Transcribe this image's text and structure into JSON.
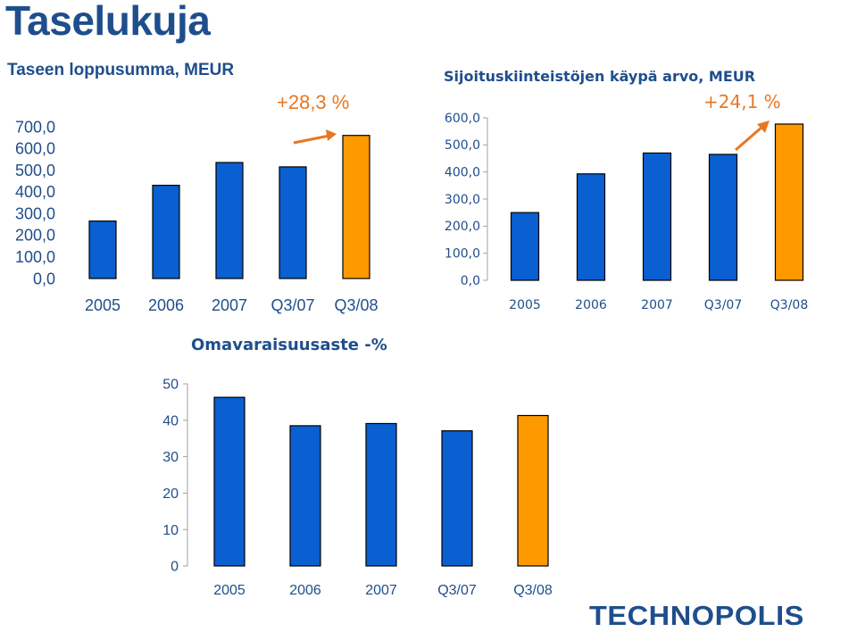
{
  "page_title": "Taselukuja",
  "logo_text": "TECHNOPOLIS",
  "colors": {
    "bar": "#0a5fd1",
    "highlight": "#ff9900",
    "text": "#1f4e8c",
    "arrow": "#e87722"
  },
  "chart_data": [
    {
      "type": "bar",
      "title": "Taseen loppusumma, MEUR",
      "annotation": "+28,3 %",
      "categories": [
        "2005",
        "2006",
        "2007",
        "Q3/07",
        "Q3/08"
      ],
      "values": [
        265,
        430,
        535,
        515,
        660
      ],
      "highlight_index": 4,
      "yticks": [
        "0,0",
        "100,0",
        "200,0",
        "300,0",
        "400,0",
        "500,0",
        "600,0",
        "700,0"
      ],
      "ylim": [
        0,
        700
      ],
      "show_axis_line": false
    },
    {
      "type": "bar",
      "title": "Sijoituskiinteistöjen käypä arvo, MEUR",
      "annotation": "+24,1 %",
      "categories": [
        "2005",
        "2006",
        "2007",
        "Q3/07",
        "Q3/08"
      ],
      "values": [
        250,
        393,
        470,
        465,
        577
      ],
      "highlight_index": 4,
      "yticks": [
        "0,0",
        "100,0",
        "200,0",
        "300,0",
        "400,0",
        "500,0",
        "600,0"
      ],
      "ylim": [
        0,
        600
      ],
      "show_axis_line": true
    },
    {
      "type": "bar",
      "title": "Omavaraisuusaste -%",
      "categories": [
        "2005",
        "2006",
        "2007",
        "Q3/07",
        "Q3/08"
      ],
      "values": [
        46.3,
        38.5,
        39.1,
        37.1,
        41.3
      ],
      "highlight_index": 4,
      "yticks": [
        "0",
        "10",
        "20",
        "30",
        "40",
        "50"
      ],
      "ylim": [
        0,
        50
      ],
      "show_axis_line": true
    }
  ]
}
